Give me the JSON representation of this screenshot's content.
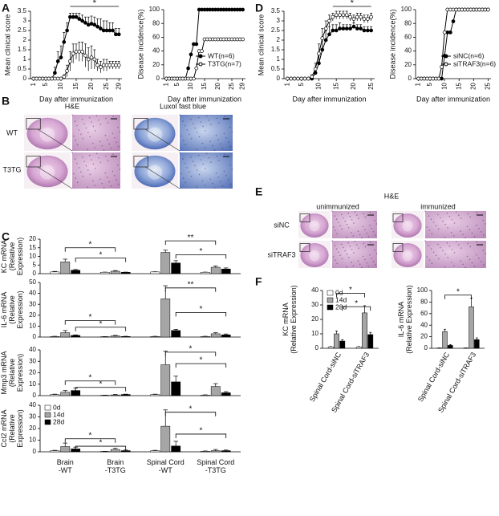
{
  "panel_labels": [
    "A",
    "B",
    "C",
    "D",
    "E",
    "F"
  ],
  "histology_B": {
    "columns": [
      "H&E",
      "Luxol fast blue"
    ],
    "rows": [
      "WT",
      "T3TG"
    ]
  },
  "histology_E": {
    "stain": "H&E",
    "columns": [
      "unimmunized",
      "immunized"
    ],
    "rows": [
      "siNC",
      "siTRAF3"
    ]
  },
  "chart_data": [
    {
      "type": "line",
      "xlabel": "Day after immunization",
      "ylabel": "Mean clinical score",
      "x": [
        1,
        2,
        3,
        4,
        5,
        6,
        7,
        8,
        9,
        10,
        11,
        12,
        13,
        14,
        15,
        16,
        17,
        18,
        19,
        20,
        21,
        22,
        23,
        24,
        25,
        26,
        27,
        28,
        29
      ],
      "xlim": [
        0,
        30
      ],
      "xticks": [
        1,
        5,
        10,
        15,
        20,
        25,
        29
      ],
      "ylim": [
        0,
        3.5
      ],
      "yticks": [
        0,
        0.5,
        1,
        1.5,
        2,
        2.5,
        3,
        3.5
      ],
      "annotations": [
        "*"
      ],
      "series": [
        {
          "name": "WT(n=6)",
          "color": "#000000",
          "fill": "#000000",
          "values": [
            0,
            0,
            0,
            0,
            0,
            0,
            0,
            0.3,
            0.9,
            1.1,
            1.9,
            2.5,
            3.2,
            3.2,
            3.2,
            3.1,
            3.0,
            2.9,
            2.8,
            2.85,
            2.8,
            2.7,
            2.6,
            2.5,
            2.5,
            2.5,
            2.5,
            2.3,
            2.3
          ],
          "errors": [
            0,
            0,
            0,
            0,
            0,
            0,
            0,
            0.3,
            0.5,
            0.6,
            0.5,
            0.4,
            0.2,
            0.2,
            0.2,
            0.3,
            0.3,
            0.3,
            0.4,
            0.4,
            0.4,
            0.4,
            0.5,
            0.5,
            0.5,
            0.4,
            0.4,
            0.3,
            0.3
          ]
        },
        {
          "name": "T3TG(n=7)",
          "color": "#000000",
          "fill": "#ffffff",
          "values": [
            0,
            0,
            0,
            0,
            0,
            0,
            0,
            0,
            0,
            0,
            0.1,
            0.4,
            0.9,
            1.3,
            1.4,
            1.4,
            1.4,
            1.2,
            1.0,
            1.1,
            1.0,
            0.7,
            0.6,
            0.7,
            0.7,
            0.7,
            0.7,
            0.7,
            0.7
          ],
          "errors": [
            0,
            0,
            0,
            0,
            0,
            0,
            0,
            0,
            0,
            0,
            0.1,
            0.3,
            0.5,
            0.5,
            0.4,
            0.5,
            0.5,
            0.6,
            0.6,
            0.6,
            0.5,
            0.3,
            0.3,
            0.3,
            0.3,
            0.2,
            0.2,
            0.2,
            0.2
          ]
        }
      ]
    },
    {
      "type": "line",
      "xlabel": "Day after immunization",
      "ylabel": "Disease incidence(%)",
      "x": [
        1,
        2,
        3,
        4,
        5,
        6,
        7,
        8,
        9,
        10,
        11,
        12,
        13,
        14,
        15,
        16,
        17,
        18,
        19,
        20,
        21,
        22,
        23,
        24,
        25,
        26,
        27,
        28,
        29
      ],
      "xlim": [
        0,
        30
      ],
      "xticks": [
        1,
        5,
        10,
        15,
        20,
        25,
        29
      ],
      "ylim": [
        0,
        100
      ],
      "yticks": [
        0,
        20,
        40,
        60,
        80,
        100
      ],
      "legend": "lower right",
      "series": [
        {
          "name": "WT(n=6)",
          "color": "#000000",
          "fill": "#000000",
          "values": [
            0,
            0,
            0,
            0,
            0,
            0,
            0,
            0,
            15,
            35,
            50,
            50,
            100,
            100,
            100,
            100,
            100,
            100,
            100,
            100,
            100,
            100,
            100,
            100,
            100,
            100,
            100,
            100,
            100
          ]
        },
        {
          "name": "T3TG(n=7)",
          "color": "#000000",
          "fill": "#ffffff",
          "values": [
            0,
            0,
            0,
            0,
            0,
            0,
            0,
            0,
            0,
            0,
            0,
            15,
            40,
            40,
            57,
            57,
            57,
            57,
            57,
            57,
            57,
            57,
            57,
            57,
            57,
            57,
            57,
            57,
            57
          ]
        }
      ]
    },
    {
      "type": "line",
      "xlabel": "Day after immunization",
      "ylabel": "Mean clinical score",
      "x": [
        1,
        2,
        3,
        4,
        5,
        6,
        7,
        8,
        9,
        10,
        11,
        12,
        13,
        14,
        15,
        16,
        17,
        18,
        19,
        20,
        21,
        22,
        23,
        24,
        25
      ],
      "xlim": [
        0,
        26
      ],
      "xticks": [
        1,
        5,
        10,
        15,
        20,
        25
      ],
      "ylim": [
        0,
        3.5
      ],
      "yticks": [
        0,
        0.5,
        1,
        1.5,
        2,
        2.5,
        3,
        3.5
      ],
      "annotations": [
        "*"
      ],
      "series": [
        {
          "name": "siNC(n=6)",
          "color": "#000000",
          "fill": "#000000",
          "values": [
            0,
            0,
            0,
            0,
            0,
            0,
            0,
            0,
            0.3,
            0.8,
            1.5,
            2.0,
            2.3,
            2.5,
            2.5,
            2.6,
            2.6,
            2.6,
            2.6,
            2.7,
            2.6,
            2.6,
            2.5,
            2.5,
            2.5
          ],
          "errors": [
            0,
            0,
            0,
            0,
            0,
            0,
            0,
            0,
            0.2,
            0.5,
            0.6,
            0.5,
            0.4,
            0.3,
            0.3,
            0.3,
            0.2,
            0.2,
            0.2,
            0.2,
            0.2,
            0.2,
            0.2,
            0.2,
            0.2
          ]
        },
        {
          "name": "siTRAF3(n=6)",
          "color": "#000000",
          "fill": "#ffffff",
          "values": [
            0,
            0,
            0,
            0,
            0,
            0,
            0,
            0.1,
            0.5,
            1.3,
            2.1,
            2.6,
            3.0,
            3.2,
            3.3,
            3.3,
            3.3,
            3.3,
            3.2,
            3.1,
            3.2,
            3.2,
            3.1,
            3.1,
            3.2
          ],
          "errors": [
            0,
            0,
            0,
            0,
            0,
            0,
            0,
            0.1,
            0.3,
            0.5,
            0.5,
            0.4,
            0.3,
            0.2,
            0.2,
            0.2,
            0.2,
            0.2,
            0.2,
            0.2,
            0.2,
            0.2,
            0.2,
            0.2,
            0.2
          ]
        }
      ]
    },
    {
      "type": "line",
      "xlabel": "Day after immunization",
      "ylabel": "Disease incidence(%)",
      "x": [
        1,
        2,
        3,
        4,
        5,
        6,
        7,
        8,
        9,
        10,
        11,
        12,
        13,
        14,
        15,
        16,
        17,
        18,
        19,
        20,
        21,
        22,
        23,
        24,
        25
      ],
      "xlim": [
        0,
        26
      ],
      "xticks": [
        1,
        5,
        10,
        15,
        20,
        25
      ],
      "ylim": [
        0,
        100
      ],
      "yticks": [
        0,
        20,
        40,
        60,
        80,
        100
      ],
      "legend": "lower right",
      "series": [
        {
          "name": "siNC(n=6)",
          "color": "#000000",
          "fill": "#000000",
          "values": [
            0,
            0,
            0,
            0,
            0,
            0,
            0,
            0,
            0,
            33,
            67,
            67,
            83,
            100,
            100,
            100,
            100,
            100,
            100,
            100,
            100,
            100,
            100,
            100,
            100
          ]
        },
        {
          "name": "siTRAF3(n=6)",
          "color": "#000000",
          "fill": "#ffffff",
          "values": [
            0,
            0,
            0,
            0,
            0,
            0,
            0,
            0,
            17,
            67,
            100,
            100,
            100,
            100,
            100,
            100,
            100,
            100,
            100,
            100,
            100,
            100,
            100,
            100,
            100
          ]
        }
      ]
    },
    {
      "type": "bar",
      "ylabel": "KC mRNA\n(Relative\nExpression)",
      "ylim": [
        0,
        20
      ],
      "yticks": [
        0,
        5,
        10,
        15,
        20
      ],
      "annotations": [
        "*",
        "*",
        "**",
        "*"
      ],
      "series": [
        {
          "name": "0d",
          "color": "#ffffff",
          "values": [
            1,
            0.8,
            1,
            0.8
          ],
          "errors": [
            0.3,
            0.1,
            0.1,
            0.1
          ]
        },
        {
          "name": "14d",
          "color": "#a6a6a6",
          "values": [
            6.8,
            1.4,
            12.3,
            3.7
          ],
          "errors": [
            1.6,
            0.4,
            1.3,
            0.8
          ]
        },
        {
          "name": "28d",
          "color": "#000000",
          "values": [
            2,
            0.8,
            6.2,
            2.7
          ],
          "errors": [
            0.4,
            0.1,
            1.3,
            0.6
          ]
        }
      ]
    },
    {
      "type": "bar",
      "ylabel": "IL-6 mRNA\n(Relative\nExpression)",
      "ylim": [
        0,
        50
      ],
      "yticks": [
        0,
        10,
        20,
        30,
        40,
        50
      ],
      "annotations": [
        "*",
        "*",
        "**",
        "*"
      ],
      "series": [
        {
          "name": "0d",
          "color": "#ffffff",
          "values": [
            0.5,
            0.3,
            0.5,
            0.5
          ],
          "errors": [
            0.2,
            0.1,
            0.2,
            0.2
          ]
        },
        {
          "name": "14d",
          "color": "#a6a6a6",
          "values": [
            4,
            1,
            35,
            3
          ],
          "errors": [
            2,
            0.5,
            12,
            1
          ]
        },
        {
          "name": "28d",
          "color": "#000000",
          "values": [
            1.5,
            0.5,
            6,
            2
          ],
          "errors": [
            0.5,
            0.2,
            1,
            0.8
          ]
        }
      ]
    },
    {
      "type": "bar",
      "ylabel": "Mmp3 mRNA\n(Relative\nExpression)",
      "ylim": [
        0,
        40
      ],
      "yticks": [
        0,
        10,
        20,
        30,
        40
      ],
      "annotations": [
        "*",
        "*",
        "*",
        "*"
      ],
      "series": [
        {
          "name": "0d",
          "color": "#ffffff",
          "values": [
            1,
            0.3,
            1,
            0.5
          ],
          "errors": [
            0.3,
            0.1,
            0.3,
            0.2
          ]
        },
        {
          "name": "14d",
          "color": "#a6a6a6",
          "values": [
            3,
            0.6,
            27,
            8
          ],
          "errors": [
            1.5,
            0.5,
            12,
            2.5
          ]
        },
        {
          "name": "28d",
          "color": "#000000",
          "values": [
            4.5,
            1,
            12,
            2.5
          ],
          "errors": [
            2,
            0.3,
            5,
            1
          ]
        }
      ]
    },
    {
      "type": "bar",
      "ylabel": "Ccl2 mRNA\n(Relative\nExpression)",
      "ylim": [
        0,
        40
      ],
      "yticks": [
        0,
        10,
        20,
        30,
        40
      ],
      "categories": [
        "Brain\n-WT",
        "Brain\n-T3TG",
        "Spinal Cord\n-WT",
        "Spinal Cord\n-T3TG"
      ],
      "legend": "upper left",
      "annotations": [
        "*",
        "*",
        "*",
        "*"
      ],
      "series": [
        {
          "name": "0d",
          "color": "#ffffff",
          "values": [
            1,
            0.3,
            1,
            0.5
          ],
          "errors": [
            0.3,
            0.1,
            0.3,
            0.2
          ]
        },
        {
          "name": "14d",
          "color": "#a6a6a6",
          "values": [
            4.5,
            2,
            22,
            1
          ],
          "errors": [
            3,
            1,
            14,
            1
          ]
        },
        {
          "name": "28d",
          "color": "#000000",
          "values": [
            2.5,
            1,
            5,
            1
          ],
          "errors": [
            1.5,
            0.5,
            4,
            0.5
          ]
        }
      ]
    },
    {
      "type": "bar",
      "ylabel": "KC mRNA\n(Relative Expression)",
      "ylim": [
        0,
        40
      ],
      "yticks": [
        0,
        10,
        20,
        30,
        40
      ],
      "categories": [
        "Spinal Cord-siNC",
        "Spinal Cord-siTRAF3"
      ],
      "legend": "upper left",
      "annotations": [
        "*",
        "*"
      ],
      "series": [
        {
          "name": "0d",
          "color": "#ffffff",
          "values": [
            1,
            1
          ],
          "errors": [
            0.2,
            0.2
          ]
        },
        {
          "name": "14d",
          "color": "#a6a6a6",
          "values": [
            10,
            24.5
          ],
          "errors": [
            2,
            5
          ]
        },
        {
          "name": "28d",
          "color": "#000000",
          "values": [
            5,
            9.5
          ],
          "errors": [
            1,
            1.5
          ]
        }
      ]
    },
    {
      "type": "bar",
      "ylabel": "IL-6 mRNA\n(Relative Expression)",
      "ylim": [
        0,
        100
      ],
      "yticks": [
        0,
        20,
        40,
        60,
        80,
        100
      ],
      "categories": [
        "Spinal Cord-siNC",
        "Spinal Cord-siTRAF3"
      ],
      "annotations": [
        "*"
      ],
      "series": [
        {
          "name": "0d",
          "color": "#ffffff",
          "values": [
            0.5,
            0.5
          ],
          "errors": [
            0.2,
            0.2
          ]
        },
        {
          "name": "14d",
          "color": "#a6a6a6",
          "values": [
            29,
            72
          ],
          "errors": [
            4,
            15
          ]
        },
        {
          "name": "28d",
          "color": "#000000",
          "values": [
            5,
            15
          ],
          "errors": [
            1.5,
            3
          ]
        }
      ]
    }
  ]
}
